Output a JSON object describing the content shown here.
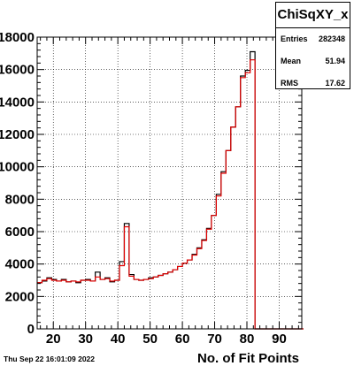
{
  "stats_box": {
    "title": "ChiSqXY_x",
    "rows": [
      {
        "label": "Entries",
        "value": "282348"
      },
      {
        "label": "Mean",
        "value": "51.94"
      },
      {
        "label": "RMS",
        "value": "17.62"
      }
    ]
  },
  "datestamp": "Thu Sep 22 16:01:09 2022",
  "colors": {
    "histogram_black": "#000000",
    "histogram_red": "#e00000",
    "grid": "#000000"
  },
  "chart_data": {
    "type": "bar",
    "style": "step-histogram",
    "title": "",
    "xlabel": "No. of Fit Points",
    "ylabel": "",
    "xlim": [
      15,
      97
    ],
    "ylim": [
      0,
      18000
    ],
    "grid": true,
    "x_ticks": [
      20,
      30,
      40,
      50,
      60,
      70,
      80,
      90
    ],
    "y_ticks": [
      0,
      2000,
      4000,
      6000,
      8000,
      10000,
      12000,
      14000,
      16000,
      18000
    ],
    "bin_edges_start": 15,
    "bin_width": 1.5,
    "series": [
      {
        "color": "#000000",
        "values": [
          2850,
          2950,
          3150,
          3050,
          2950,
          3050,
          2900,
          2950,
          2850,
          3000,
          3050,
          2950,
          3500,
          3050,
          3150,
          2900,
          3000,
          4150,
          6500,
          3350,
          3050,
          3000,
          3050,
          3150,
          3200,
          3300,
          3400,
          3500,
          3650,
          3850,
          4050,
          4250,
          4600,
          5000,
          5500,
          6200,
          7000,
          8300,
          9700,
          11000,
          12450,
          13700,
          15600,
          15950,
          17100,
          0,
          0,
          0,
          0,
          0,
          0,
          0,
          0,
          0,
          0
        ]
      },
      {
        "color": "#e00000",
        "values": [
          2850,
          3000,
          3100,
          3000,
          2950,
          3000,
          2900,
          2950,
          2900,
          3000,
          3000,
          2950,
          3200,
          3050,
          3100,
          2950,
          3000,
          3900,
          6300,
          3250,
          3050,
          3000,
          3050,
          3100,
          3200,
          3300,
          3400,
          3500,
          3650,
          3850,
          4050,
          4250,
          4550,
          4950,
          5450,
          6150,
          7000,
          8200,
          9600,
          11000,
          12450,
          13700,
          15500,
          15800,
          16600,
          0,
          0,
          0,
          0,
          0,
          0,
          0,
          0,
          0,
          0
        ]
      }
    ]
  }
}
